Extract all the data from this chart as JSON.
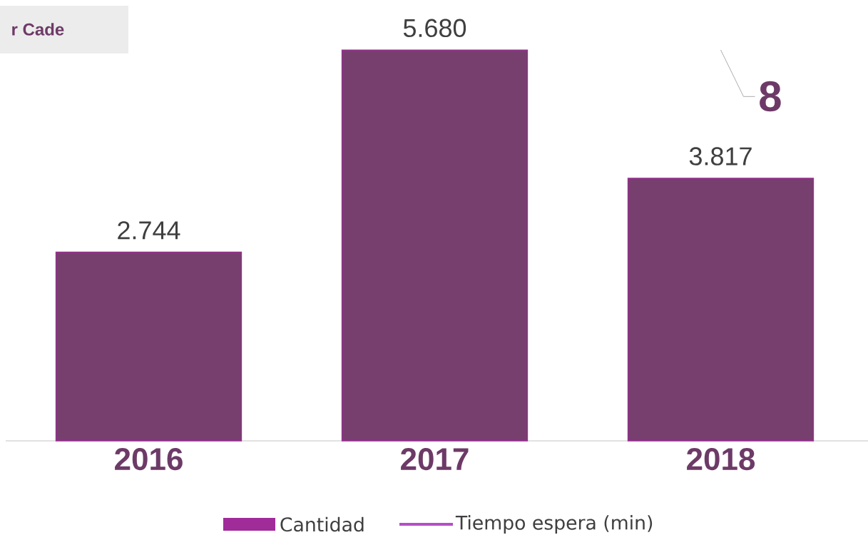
{
  "chart_data": {
    "type": "bar",
    "categories": [
      "2016",
      "2017",
      "2018"
    ],
    "series": [
      {
        "name": "Cantidad",
        "color": "#773f6e",
        "values": [
          2744,
          5680,
          3817
        ],
        "value_labels": [
          "2.744",
          "5.680",
          "3.817"
        ]
      },
      {
        "name": "Tiempo espera (min)",
        "type": "line",
        "color": "#b44fc8",
        "values": [
          null,
          null,
          null
        ]
      }
    ],
    "annotations": [
      "r Cade",
      {
        "text": "8",
        "x": "2018"
      }
    ],
    "legend": "bottom"
  }
}
